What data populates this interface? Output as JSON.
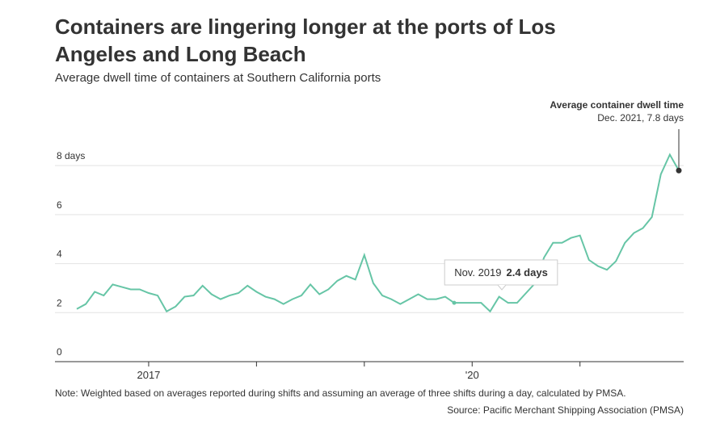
{
  "chart_data": {
    "type": "line",
    "title": "Containers are lingering longer at the ports of Los Angeles and Long Beach",
    "title_lines": [
      "Containers are lingering longer at the ports of Los",
      "Angeles and Long Beach"
    ],
    "subtitle": "Average dwell time of containers at Southern California ports",
    "note": "Note: Weighted based on averages reported during shifts and assuming an average of three shifts during a day, calculated by PMSA.",
    "source": "Source: Pacific Merchant Shipping Association (PMSA)",
    "categories": [
      "May 2016",
      "June 2016",
      "July 2016",
      "Aug. 2016",
      "Sept. 2016",
      "Oct. 2016",
      "Nov. 2016",
      "Dec. 2016",
      "Jan. 2017",
      "Feb. 2017",
      "March 2017",
      "April 2017",
      "May 2017",
      "June 2017",
      "July 2017",
      "Aug. 2017",
      "Sept. 2017",
      "Oct. 2017",
      "Nov. 2017",
      "Dec. 2017",
      "Jan. 2018",
      "Feb. 2018",
      "March 2018",
      "April 2018",
      "May 2018",
      "June 2018",
      "July 2018",
      "Aug. 2018",
      "Sept. 2018",
      "Oct. 2018",
      "Nov. 2018",
      "Dec. 2018",
      "Jan. 2019",
      "Feb. 2019",
      "March 2019",
      "April 2019",
      "May 2019",
      "June 2019",
      "July 2019",
      "Aug. 2019",
      "Sept. 2019",
      "Oct. 2019",
      "Nov. 2019",
      "Dec. 2019",
      "Jan. 2020",
      "Feb. 2020",
      "March 2020",
      "April 2020",
      "May 2020",
      "June 2020",
      "July 2020",
      "Aug. 2020",
      "Sept. 2020",
      "Oct. 2020",
      "Nov. 2020",
      "Dec. 2020",
      "Jan. 2021",
      "Feb. 2021",
      "March 2021",
      "April 2021",
      "May 2021",
      "June 2021",
      "July 2021",
      "Aug. 2021",
      "Sept. 2021",
      "Oct. 2021",
      "Nov. 2021",
      "Dec. 2021"
    ],
    "series": [
      {
        "name": "Average container dwell time",
        "color": "#66c5a6",
        "values": [
          2.15,
          2.35,
          2.85,
          2.7,
          3.15,
          3.05,
          2.95,
          2.95,
          2.8,
          2.7,
          2.05,
          2.25,
          2.65,
          2.7,
          3.1,
          2.75,
          2.55,
          2.7,
          2.8,
          3.1,
          2.85,
          2.65,
          2.55,
          2.35,
          2.55,
          2.7,
          3.15,
          2.75,
          2.95,
          3.3,
          3.5,
          3.35,
          4.35,
          3.2,
          2.7,
          2.55,
          2.35,
          2.55,
          2.75,
          2.55,
          2.55,
          2.65,
          2.4,
          2.4,
          2.4,
          2.4,
          2.05,
          2.65,
          2.4,
          2.4,
          2.8,
          3.2,
          4.25,
          4.85,
          4.85,
          5.05,
          5.15,
          4.15,
          3.9,
          3.75,
          4.1,
          4.85,
          5.25,
          5.45,
          5.9,
          7.65,
          8.45,
          7.8
        ]
      }
    ],
    "ylim": [
      0,
      8.5
    ],
    "yticks": [
      0,
      2,
      4,
      6,
      {
        "value": 8,
        "label": "8 days"
      }
    ],
    "xticks": [
      {
        "value": "Jan. 2017",
        "label": "2017"
      },
      {
        "value": "Jan. 2020",
        "label": "'20"
      }
    ],
    "minor_xticks": [
      "Jan. 2018",
      "Jan. 2019",
      "Jan. 2021"
    ],
    "grid": true,
    "highlight": {
      "x": "Dec. 2021",
      "title": "Average container dwell time",
      "subtitle": "Dec. 2021, 7.8 days"
    },
    "tooltip": {
      "x": "Nov. 2019",
      "label": "Nov. 2019",
      "value_label": "2.4 days"
    }
  }
}
